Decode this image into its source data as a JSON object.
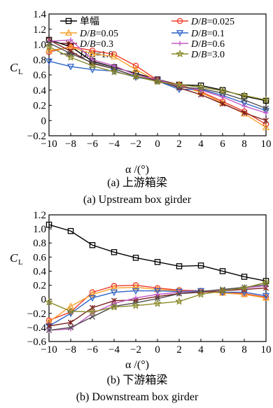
{
  "legend": {
    "entries": [
      {
        "label": "单幅",
        "color": "#000000",
        "marker": "square"
      },
      {
        "label": "D/B=0.025",
        "color": "#ee3b2b",
        "marker": "circle"
      },
      {
        "label": "D/B=0.05",
        "color": "#f7a02a",
        "marker": "triangle-up"
      },
      {
        "label": "D/B=0.1",
        "color": "#2e64c8",
        "marker": "triangle-down"
      },
      {
        "label": "D/B=0.3",
        "color": "#7b1e1e",
        "marker": "star-x"
      },
      {
        "label": "D/B=0.6",
        "color": "#c35ac6",
        "marker": "plus"
      },
      {
        "label": "D/B=1.0",
        "color": "#4f4f4f",
        "marker": "x"
      },
      {
        "label": "D/B=3.0",
        "color": "#8a8a2c",
        "marker": "star"
      }
    ]
  },
  "chart_data": [
    {
      "type": "line",
      "subtitle_cn": "(a)  上游箱梁",
      "subtitle_en": "(a)  Upstream box girder",
      "xlabel": "α /(°)",
      "ylabel": "C",
      "ylabel_sub": "L",
      "xlim": [
        -10,
        10
      ],
      "ylim": [
        -0.2,
        1.4
      ],
      "xticks": [
        -10,
        -8,
        -6,
        -4,
        -2,
        0,
        2,
        4,
        6,
        8,
        10
      ],
      "yticks": [
        -0.2,
        0,
        0.2,
        0.4,
        0.6,
        0.8,
        1.0,
        1.2,
        1.4
      ],
      "ytick_labels": [
        "−0.2",
        "0",
        "0.2",
        "0.4",
        "0.6",
        "0.8",
        "1.0",
        "1.2",
        "1.4"
      ],
      "xtick_labels": [
        "−10",
        "−8",
        "−6",
        "−4",
        "−2",
        "0",
        "2",
        "4",
        "6",
        "8",
        "10"
      ],
      "legend_position": "top-right",
      "x": [
        -10,
        -8,
        -6,
        -4,
        -2,
        0,
        2,
        4,
        6,
        8,
        10
      ],
      "series": [
        {
          "name": "单幅",
          "values": [
            1.06,
            0.97,
            0.78,
            0.7,
            0.62,
            0.54,
            0.47,
            0.46,
            0.4,
            0.32,
            0.26
          ]
        },
        {
          "name": "D/B=0.025",
          "values": [
            0.9,
            0.97,
            0.92,
            0.87,
            0.72,
            0.53,
            0.47,
            0.38,
            0.25,
            0.12,
            -0.05
          ]
        },
        {
          "name": "D/B=0.05",
          "values": [
            0.92,
            0.96,
            0.88,
            0.84,
            0.67,
            0.52,
            0.46,
            0.37,
            0.23,
            0.09,
            -0.09
          ]
        },
        {
          "name": "D/B=0.1",
          "values": [
            0.78,
            0.71,
            0.67,
            0.65,
            0.57,
            0.52,
            0.41,
            0.41,
            0.33,
            0.23,
            0.13
          ]
        },
        {
          "name": "D/B=0.3",
          "values": [
            1.06,
            0.91,
            0.75,
            0.68,
            0.58,
            0.53,
            0.43,
            0.34,
            0.22,
            0.1,
            0.0
          ]
        },
        {
          "name": "D/B=0.6",
          "values": [
            1.04,
            1.06,
            0.8,
            0.72,
            0.6,
            0.54,
            0.45,
            0.4,
            0.31,
            0.19,
            0.1
          ]
        },
        {
          "name": "D/B=1.0",
          "values": [
            1.02,
            0.88,
            0.76,
            0.68,
            0.58,
            0.52,
            0.44,
            0.42,
            0.36,
            0.27,
            0.16
          ]
        },
        {
          "name": "D/B=3.0",
          "values": [
            0.97,
            0.83,
            0.72,
            0.64,
            0.58,
            0.51,
            0.47,
            0.44,
            0.39,
            0.33,
            0.27
          ]
        }
      ]
    },
    {
      "type": "line",
      "subtitle_cn": "(b)  下游箱梁",
      "subtitle_en": "(b)  Downstream box girder",
      "xlabel": "α /(°)",
      "ylabel": "C",
      "ylabel_sub": "L",
      "xlim": [
        -10,
        10
      ],
      "ylim": [
        -0.6,
        1.2
      ],
      "xticks": [
        -10,
        -8,
        -6,
        -4,
        -2,
        0,
        2,
        4,
        6,
        8,
        10
      ],
      "yticks": [
        -0.6,
        -0.4,
        -0.2,
        0,
        0.2,
        0.4,
        0.6,
        0.8,
        1.0,
        1.2
      ],
      "ytick_labels": [
        "−0.6",
        "−0.4",
        "−0.2",
        "0",
        "0.2",
        "0.4",
        "0.6",
        "0.8",
        "1.0",
        "1.2"
      ],
      "xtick_labels": [
        "−10",
        "−8",
        "−6",
        "−4",
        "−2",
        "0",
        "2",
        "4",
        "6",
        "8",
        "10"
      ],
      "x": [
        -10,
        -8,
        -6,
        -4,
        -2,
        0,
        2,
        4,
        6,
        8,
        10
      ],
      "series": [
        {
          "name": "单幅",
          "values": [
            1.06,
            0.97,
            0.77,
            0.67,
            0.59,
            0.53,
            0.47,
            0.48,
            0.4,
            0.32,
            0.26
          ]
        },
        {
          "name": "D/B=0.025",
          "values": [
            -0.3,
            -0.18,
            0.1,
            0.19,
            0.2,
            0.16,
            0.13,
            0.12,
            0.1,
            0.08,
            0.03
          ]
        },
        {
          "name": "D/B=0.05",
          "values": [
            -0.32,
            -0.1,
            0.07,
            0.16,
            0.17,
            0.14,
            0.12,
            0.11,
            0.09,
            0.07,
            0.02
          ]
        },
        {
          "name": "D/B=0.1",
          "values": [
            -0.38,
            -0.2,
            0.02,
            0.1,
            0.12,
            0.12,
            0.11,
            0.12,
            0.1,
            0.1,
            0.05
          ]
        },
        {
          "name": "D/B=0.3",
          "values": [
            -0.38,
            -0.33,
            -0.12,
            -0.02,
            -0.01,
            0.04,
            0.08,
            0.1,
            0.12,
            0.14,
            0.16
          ]
        },
        {
          "name": "D/B=0.6",
          "values": [
            -0.44,
            -0.42,
            -0.2,
            -0.06,
            0.02,
            0.07,
            0.1,
            0.11,
            0.13,
            0.16,
            0.19
          ]
        },
        {
          "name": "D/B=1.0",
          "values": [
            -0.44,
            -0.4,
            -0.25,
            -0.1,
            -0.05,
            0.01,
            0.08,
            0.11,
            0.14,
            0.17,
            0.21
          ]
        },
        {
          "name": "D/B=3.0",
          "values": [
            -0.04,
            -0.17,
            -0.18,
            -0.11,
            -0.09,
            -0.06,
            -0.03,
            0.07,
            0.12,
            0.16,
            0.24
          ]
        }
      ]
    }
  ]
}
